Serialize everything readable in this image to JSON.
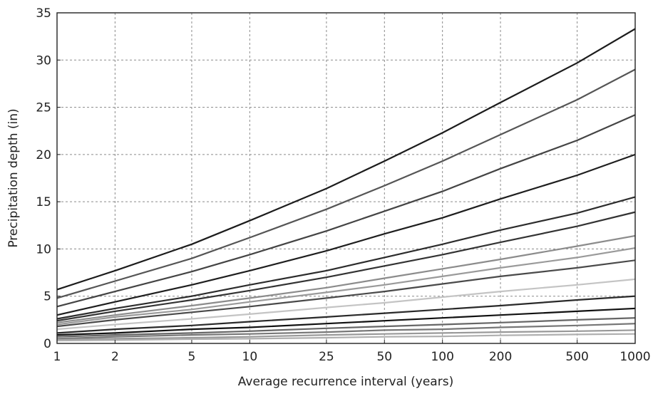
{
  "chart_data": {
    "type": "line",
    "title": "",
    "xlabel": "Average recurrence interval (years)",
    "ylabel": "Precipitation depth (in)",
    "x_scale": "log",
    "xlim": [
      1,
      1000
    ],
    "ylim": [
      0,
      35
    ],
    "grid": true,
    "x_ticks": [
      1,
      2,
      5,
      10,
      25,
      50,
      100,
      200,
      500,
      1000
    ],
    "x_tick_labels": [
      "1",
      "2",
      "5",
      "10",
      "25",
      "50",
      "100",
      "200",
      "500",
      "1000"
    ],
    "y_ticks": [
      0,
      5,
      10,
      15,
      20,
      25,
      30,
      35
    ],
    "y_tick_labels": [
      "0",
      "5",
      "10",
      "15",
      "20",
      "25",
      "30",
      "35"
    ],
    "x": [
      1,
      2,
      5,
      10,
      25,
      50,
      100,
      200,
      500,
      1000
    ],
    "series": [
      {
        "color": "#1c1c1c",
        "values": [
          5.7,
          7.7,
          10.5,
          13.0,
          16.4,
          19.3,
          22.3,
          25.5,
          29.7,
          33.3
        ]
      },
      {
        "color": "#555555",
        "values": [
          4.8,
          6.6,
          9.0,
          11.2,
          14.2,
          16.7,
          19.3,
          22.1,
          25.8,
          29.0
        ]
      },
      {
        "color": "#444444",
        "values": [
          3.9,
          5.5,
          7.6,
          9.4,
          11.9,
          14.0,
          16.1,
          18.5,
          21.5,
          24.2
        ]
      },
      {
        "color": "#1e1e1e",
        "values": [
          3.0,
          4.4,
          6.2,
          7.7,
          9.8,
          11.6,
          13.3,
          15.3,
          17.8,
          20.0
        ]
      },
      {
        "color": "#2c2c2c",
        "values": [
          2.6,
          3.7,
          5.0,
          6.2,
          7.7,
          9.1,
          10.5,
          12.0,
          13.8,
          15.5
        ]
      },
      {
        "color": "#333333",
        "values": [
          2.4,
          3.4,
          4.6,
          5.6,
          7.0,
          8.2,
          9.4,
          10.7,
          12.4,
          13.9
        ]
      },
      {
        "color": "#8c8c8c",
        "values": [
          2.2,
          3.0,
          4.0,
          4.8,
          5.9,
          6.9,
          7.9,
          8.9,
          10.3,
          11.4
        ]
      },
      {
        "color": "#9a9a9a",
        "values": [
          2.0,
          2.8,
          3.6,
          4.4,
          5.4,
          6.2,
          7.1,
          8.0,
          9.1,
          10.1
        ]
      },
      {
        "color": "#4a4a4a",
        "values": [
          1.8,
          2.5,
          3.3,
          3.9,
          4.8,
          5.5,
          6.3,
          7.1,
          8.0,
          8.8
        ]
      },
      {
        "color": "#c4c4c4",
        "values": [
          1.5,
          2.0,
          2.6,
          3.1,
          3.8,
          4.3,
          4.9,
          5.5,
          6.2,
          6.8
        ]
      },
      {
        "color": "#2a2a2a",
        "values": [
          1.1,
          1.5,
          1.9,
          2.3,
          2.8,
          3.2,
          3.6,
          4.0,
          4.6,
          5.0
        ]
      },
      {
        "color": "#111111",
        "values": [
          0.9,
          1.1,
          1.5,
          1.7,
          2.1,
          2.4,
          2.7,
          3.0,
          3.4,
          3.7
        ]
      },
      {
        "color": "#666666",
        "values": [
          0.7,
          0.9,
          1.1,
          1.3,
          1.6,
          1.8,
          2.0,
          2.2,
          2.5,
          2.7
        ]
      },
      {
        "color": "#777777",
        "values": [
          0.5,
          0.7,
          0.9,
          1.0,
          1.2,
          1.4,
          1.5,
          1.7,
          1.9,
          2.1
        ]
      },
      {
        "color": "#999999",
        "values": [
          0.4,
          0.5,
          0.6,
          0.7,
          0.9,
          1.0,
          1.1,
          1.2,
          1.3,
          1.4
        ]
      },
      {
        "color": "#b0b0b0",
        "values": [
          0.3,
          0.35,
          0.45,
          0.5,
          0.6,
          0.7,
          0.75,
          0.85,
          0.95,
          1.0
        ]
      }
    ]
  }
}
